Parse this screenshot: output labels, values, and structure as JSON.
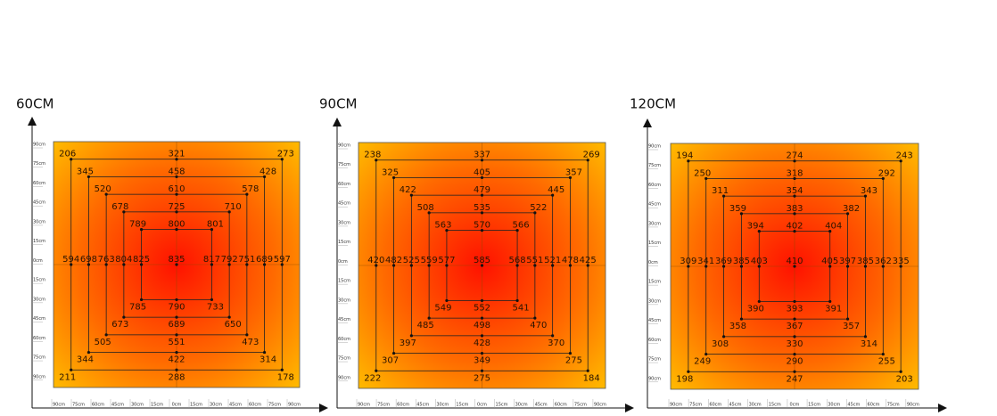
{
  "chart_data": [
    {
      "type": "heatmap",
      "title": "60CM",
      "x_ticks": [
        "90cm",
        "75cm",
        "60cm",
        "45cm",
        "30cm",
        "15cm",
        "0cm",
        "15cm",
        "30cm",
        "45cm",
        "60cm",
        "75cm",
        "90cm"
      ],
      "y_ticks": [
        "90cm",
        "75cm",
        "60cm",
        "45cm",
        "30cm",
        "15cm",
        "0cm",
        "15cm",
        "30cm",
        "45cm",
        "60cm",
        "75cm",
        "90cm"
      ],
      "rings": [
        {
          "square": 6,
          "tl": 206,
          "t": 321,
          "tr": 273,
          "l": 594,
          "r": 597,
          "bl": 211,
          "b": 288,
          "br": 178
        },
        {
          "square": 5,
          "tl": 345,
          "t": 458,
          "tr": 428,
          "l": 698,
          "r": 689,
          "bl": 344,
          "b": 422,
          "br": 314
        },
        {
          "square": 4,
          "tl": 520,
          "t": 610,
          "tr": 578,
          "l": 763,
          "r": 751,
          "bl": 505,
          "b": 551,
          "br": 473
        },
        {
          "square": 3,
          "tl": 678,
          "t": 725,
          "tr": 710,
          "l": 804,
          "r": 792,
          "bl": 673,
          "b": 689,
          "br": 650
        },
        {
          "square": 2,
          "tl": 789,
          "t": 800,
          "tr": 801,
          "l": 825,
          "r": 817,
          "bl": 785,
          "b": 790,
          "br": 733
        }
      ],
      "center": 835
    },
    {
      "type": "heatmap",
      "title": "90CM",
      "x_ticks": [
        "90cm",
        "75cm",
        "60cm",
        "45cm",
        "30cm",
        "15cm",
        "0cm",
        "15cm",
        "30cm",
        "45cm",
        "60cm",
        "75cm",
        "90cm"
      ],
      "y_ticks": [
        "90cm",
        "75cm",
        "60cm",
        "45cm",
        "30cm",
        "15cm",
        "0cm",
        "15cm",
        "30cm",
        "45cm",
        "60cm",
        "75cm",
        "90cm"
      ],
      "rings": [
        {
          "square": 6,
          "tl": 238,
          "t": 337,
          "tr": 269,
          "l": 420,
          "r": 425,
          "bl": 222,
          "b": 275,
          "br": 184
        },
        {
          "square": 5,
          "tl": 325,
          "t": 405,
          "tr": 357,
          "l": 482,
          "r": 478,
          "bl": 307,
          "b": 349,
          "br": 275
        },
        {
          "square": 4,
          "tl": 422,
          "t": 479,
          "tr": 445,
          "l": 525,
          "r": 521,
          "bl": 397,
          "b": 428,
          "br": 370
        },
        {
          "square": 3,
          "tl": 508,
          "t": 535,
          "tr": 522,
          "l": 559,
          "r": 551,
          "bl": 485,
          "b": 498,
          "br": 470
        },
        {
          "square": 2,
          "tl": 563,
          "t": 570,
          "tr": 566,
          "l": 577,
          "r": 568,
          "bl": 549,
          "b": 552,
          "br": 541
        }
      ],
      "center": 585
    },
    {
      "type": "heatmap",
      "title": "120CM",
      "x_ticks": [
        "90cm",
        "75cm",
        "60cm",
        "45cm",
        "30cm",
        "15cm",
        "0cm",
        "15cm",
        "30cm",
        "45cm",
        "60cm",
        "75cm",
        "90cm"
      ],
      "y_ticks": [
        "90cm",
        "75cm",
        "60cm",
        "45cm",
        "30cm",
        "15cm",
        "0cm",
        "15cm",
        "30cm",
        "45cm",
        "60cm",
        "75cm",
        "90cm"
      ],
      "rings": [
        {
          "square": 6,
          "tl": 194,
          "t": 274,
          "tr": 243,
          "l": 309,
          "r": 335,
          "bl": 198,
          "b": 247,
          "br": 203
        },
        {
          "square": 5,
          "tl": 250,
          "t": 318,
          "tr": 292,
          "l": 341,
          "r": 362,
          "bl": 249,
          "b": 290,
          "br": 255
        },
        {
          "square": 4,
          "tl": 311,
          "t": 354,
          "tr": 343,
          "l": 369,
          "r": 385,
          "bl": 308,
          "b": 330,
          "br": 314
        },
        {
          "square": 3,
          "tl": 359,
          "t": 383,
          "tr": 382,
          "l": 385,
          "r": 397,
          "bl": 358,
          "b": 367,
          "br": 357
        },
        {
          "square": 2,
          "tl": 394,
          "t": 402,
          "tr": 404,
          "l": 403,
          "r": 405,
          "bl": 390,
          "b": 393,
          "br": 391
        }
      ],
      "center": 410
    }
  ],
  "colors": {
    "outer": "#ffbe00",
    "inner": "#ff1200",
    "line": "#222222"
  }
}
